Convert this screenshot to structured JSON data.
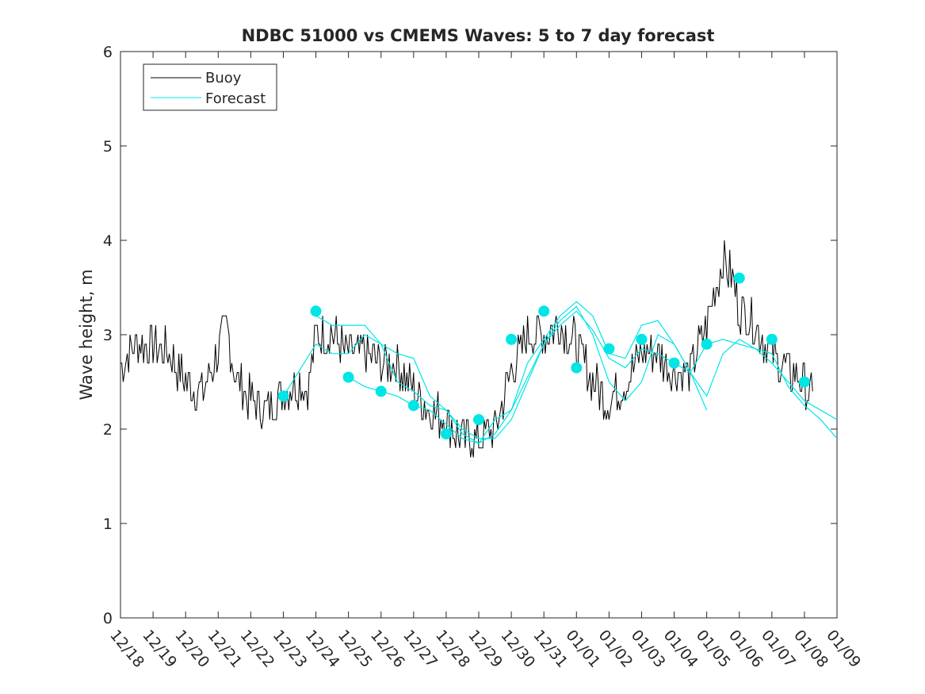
{
  "chart_data": {
    "type": "line",
    "title": "NDBC 51000 vs CMEMS Waves: 5 to 7 day forecast",
    "xlabel": "",
    "ylabel": "Wave height, m",
    "ylim": [
      0,
      6
    ],
    "yticks": [
      "0",
      "1",
      "2",
      "3",
      "4",
      "5",
      "6"
    ],
    "xlim": [
      "12/18",
      "01/09"
    ],
    "xticks": [
      "12/18",
      "12/19",
      "12/20",
      "12/21",
      "12/22",
      "12/23",
      "12/24",
      "12/25",
      "12/26",
      "12/27",
      "12/28",
      "12/29",
      "12/30",
      "12/31",
      "01/01",
      "01/02",
      "01/03",
      "01/04",
      "01/05",
      "01/06",
      "01/07",
      "01/08",
      "01/09"
    ],
    "grid": false,
    "legend_position": "top-left",
    "colors": {
      "buoy": "#000000",
      "forecast": "#00e5e5"
    },
    "series": [
      {
        "name": "Buoy",
        "style": "line",
        "x": [
          "12/18 00:00",
          "12/18 12:00",
          "12/19 00:00",
          "12/19 12:00",
          "12/20 00:00",
          "12/20 12:00",
          "12/21 00:00",
          "12/21 06:00",
          "12/21 12:00",
          "12/22 00:00",
          "12/22 12:00",
          "12/23 00:00",
          "12/23 12:00",
          "12/23 18:00",
          "12/24 00:00",
          "12/24 12:00",
          "12/25 00:00",
          "12/25 12:00",
          "12/26 00:00",
          "12/26 12:00",
          "12/27 00:00",
          "12/27 12:00",
          "12/28 00:00",
          "12/28 12:00",
          "12/29 00:00",
          "12/29 12:00",
          "12/30 00:00",
          "12/30 12:00",
          "12/31 00:00",
          "12/31 12:00",
          "01/01 00:00",
          "01/01 12:00",
          "01/02 00:00",
          "01/02 12:00",
          "01/03 00:00",
          "01/03 12:00",
          "01/04 00:00",
          "01/04 12:00",
          "01/05 00:00",
          "01/05 06:00",
          "01/05 12:00",
          "01/05 18:00",
          "01/06 00:00",
          "01/06 12:00",
          "01/07 00:00",
          "01/07 12:00",
          "01/08 00:00",
          "01/08 06:00"
        ],
        "values": [
          2.7,
          2.9,
          2.9,
          2.8,
          2.5,
          2.4,
          2.8,
          3.1,
          2.6,
          2.3,
          2.2,
          2.4,
          2.5,
          2.4,
          3.0,
          3.0,
          2.8,
          2.8,
          2.7,
          2.7,
          2.4,
          2.2,
          2.1,
          1.9,
          1.9,
          2.0,
          2.6,
          3.0,
          3.0,
          3.1,
          2.9,
          2.5,
          2.3,
          2.5,
          2.8,
          2.8,
          2.6,
          2.6,
          3.1,
          3.5,
          3.8,
          3.6,
          3.3,
          3.1,
          2.8,
          2.6,
          2.5,
          2.3
        ]
      },
      {
        "name": "Forecast",
        "style": "line",
        "segments": [
          {
            "x": [
              "12/23 00:00",
              "12/24 00:00",
              "12/24 12:00",
              "12/25 00:00",
              "12/25 12:00",
              "12/26 00:00",
              "12/26 12:00",
              "12/27 00:00",
              "12/27 12:00",
              "12/28 00:00",
              "12/28 12:00",
              "12/29 00:00",
              "12/29 12:00",
              "12/30 00:00",
              "12/30 12:00",
              "12/31 00:00",
              "12/31 12:00",
              "01/01 00:00",
              "01/01 12:00",
              "01/02 00:00",
              "01/02 12:00",
              "01/03 00:00",
              "01/03 12:00",
              "01/04 00:00",
              "01/04 12:00",
              "01/05 00:00"
            ],
            "values": [
              2.35,
              2.9,
              2.8,
              2.8,
              3.0,
              2.9,
              2.8,
              2.75,
              2.35,
              2.2,
              2.0,
              1.9,
              1.9,
              2.1,
              2.5,
              2.9,
              3.15,
              3.3,
              3.0,
              2.5,
              2.3,
              2.5,
              3.0,
              2.9,
              2.6,
              2.2
            ]
          },
          {
            "x": [
              "12/24 00:00",
              "12/24 12:00",
              "12/25 00:00",
              "12/25 12:00",
              "12/26 00:00",
              "12/26 12:00",
              "12/27 00:00",
              "12/27 12:00",
              "12/28 00:00",
              "12/28 12:00",
              "12/29 00:00",
              "12/29 12:00",
              "12/30 00:00",
              "12/30 12:00",
              "12/31 00:00",
              "12/31 12:00",
              "01/01 00:00",
              "01/01 12:00",
              "01/02 00:00",
              "01/02 12:00",
              "01/03 00:00",
              "01/03 12:00",
              "01/04 00:00",
              "01/04 12:00",
              "01/05 00:00",
              "01/05 12:00",
              "01/06 00:00",
              "01/06 12:00",
              "01/07 00:00",
              "01/07 12:00",
              "01/08 00:00",
              "01/08 12:00",
              "01/09 00:00"
            ],
            "values": [
              3.2,
              3.1,
              3.1,
              3.1,
              2.9,
              2.5,
              2.4,
              2.25,
              2.2,
              1.95,
              1.85,
              2.1,
              2.2,
              2.7,
              2.95,
              3.2,
              3.35,
              3.2,
              2.8,
              2.75,
              3.1,
              3.15,
              2.9,
              2.6,
              2.35,
              2.8,
              2.95,
              2.85,
              2.8,
              2.45,
              2.25,
              2.1,
              1.9
            ]
          },
          {
            "x": [
              "12/25 00:00",
              "12/25 12:00",
              "12/26 00:00",
              "12/26 12:00",
              "12/27 00:00",
              "12/27 12:00",
              "12/28 00:00",
              "12/28 12:00",
              "12/29 00:00",
              "12/29 12:00",
              "12/30 00:00",
              "12/30 12:00",
              "12/31 00:00",
              "12/31 12:00",
              "01/01 00:00",
              "01/01 12:00",
              "01/02 00:00",
              "01/02 12:00",
              "01/03 00:00",
              "01/03 12:00",
              "01/04 00:00",
              "01/04 12:00",
              "01/05 00:00",
              "01/05 12:00",
              "01/06 00:00",
              "01/06 12:00",
              "01/07 00:00",
              "01/07 12:00",
              "01/08 00:00",
              "01/08 12:00",
              "01/09 00:00"
            ],
            "values": [
              2.55,
              2.45,
              2.4,
              2.35,
              2.25,
              2.2,
              2.05,
              1.9,
              1.85,
              1.95,
              2.2,
              2.55,
              2.9,
              3.1,
              3.25,
              3.05,
              2.75,
              2.65,
              2.85,
              2.8,
              2.7,
              2.6,
              2.9,
              2.95,
              2.9,
              2.85,
              2.7,
              2.5,
              2.3,
              2.2,
              2.1
            ]
          }
        ],
        "points": {
          "x": [
            "12/23 00:00",
            "12/24 00:00",
            "12/25 00:00",
            "12/26 00:00",
            "12/27 00:00",
            "12/28 00:00",
            "12/29 00:00",
            "12/30 00:00",
            "12/31 00:00",
            "01/01 00:00",
            "01/02 00:00",
            "01/03 00:00",
            "01/04 00:00",
            "01/05 00:00",
            "01/06 00:00",
            "01/07 00:00",
            "01/08 00:00"
          ],
          "values": [
            2.35,
            3.25,
            2.55,
            2.4,
            2.25,
            1.95,
            2.1,
            2.95,
            3.25,
            2.65,
            2.85,
            2.95,
            2.7,
            2.9,
            3.6,
            2.95,
            2.5
          ]
        }
      }
    ]
  }
}
